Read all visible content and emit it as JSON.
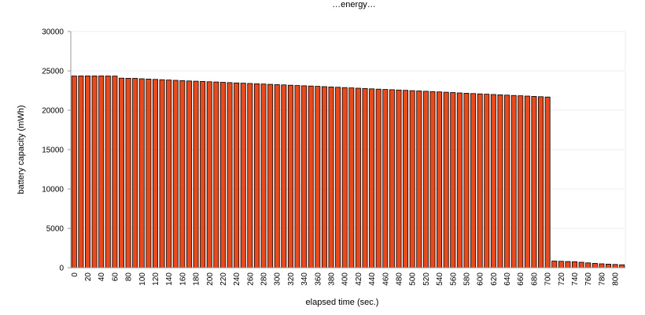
{
  "chart_data": {
    "type": "bar",
    "title": "…energy…",
    "xlabel": "elapsed time (sec.)",
    "ylabel": "battery capacity (mWh)",
    "ylim": [
      0,
      30000
    ],
    "yticks": [
      0,
      5000,
      10000,
      15000,
      20000,
      25000,
      30000
    ],
    "grid": true,
    "x": [
      0,
      10,
      20,
      30,
      40,
      50,
      60,
      70,
      80,
      90,
      100,
      110,
      120,
      130,
      140,
      150,
      160,
      170,
      180,
      190,
      200,
      210,
      220,
      230,
      240,
      250,
      260,
      270,
      280,
      290,
      300,
      310,
      320,
      330,
      340,
      350,
      360,
      370,
      380,
      390,
      400,
      410,
      420,
      430,
      440,
      450,
      460,
      470,
      480,
      490,
      500,
      510,
      520,
      530,
      540,
      550,
      560,
      570,
      580,
      590,
      600,
      610,
      620,
      630,
      640,
      650,
      660,
      670,
      680,
      690,
      700,
      710,
      720,
      730,
      740,
      750,
      760,
      770,
      780,
      790,
      800,
      810
    ],
    "values": [
      24350,
      24360,
      24360,
      24360,
      24360,
      24350,
      24340,
      24080,
      24060,
      24050,
      24000,
      23960,
      23920,
      23880,
      23840,
      23800,
      23760,
      23720,
      23690,
      23660,
      23620,
      23590,
      23550,
      23510,
      23470,
      23440,
      23400,
      23360,
      23330,
      23290,
      23250,
      23220,
      23180,
      23140,
      23110,
      23080,
      23040,
      23000,
      22960,
      22920,
      22880,
      22840,
      22800,
      22760,
      22720,
      22680,
      22640,
      22610,
      22570,
      22530,
      22490,
      22450,
      22410,
      22370,
      22330,
      22290,
      22250,
      22200,
      22160,
      22120,
      22080,
      22040,
      22000,
      21960,
      21920,
      21880,
      21840,
      21800,
      21760,
      21720,
      21680,
      850,
      820,
      790,
      760,
      700,
      620,
      560,
      500,
      460,
      420,
      380
    ],
    "xticks_shown": [
      0,
      20,
      40,
      60,
      80,
      100,
      120,
      140,
      160,
      180,
      200,
      220,
      240,
      260,
      280,
      300,
      320,
      340,
      360,
      380,
      400,
      420,
      440,
      460,
      480,
      500,
      520,
      540,
      560,
      580,
      600,
      620,
      640,
      660,
      680,
      700,
      720,
      740,
      760,
      780,
      800
    ],
    "colors": {
      "bar_fill": "#E8491D",
      "bar_stroke": "#000000",
      "grid": "#EDEDED",
      "axis": "#9A9A9A"
    }
  }
}
